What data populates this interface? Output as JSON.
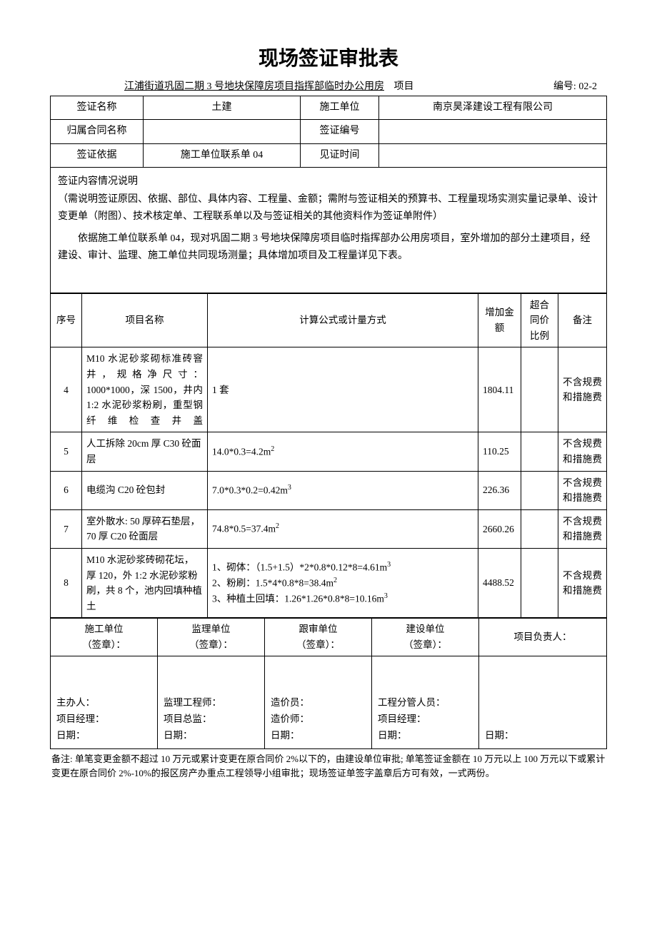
{
  "title": "现场签证审批表",
  "project_name": "江浦街道巩固二期 3 号地块保障房项目指挥部临时办公用房",
  "project_suffix": "项目",
  "doc_no_label": "编号:",
  "doc_no": "02-2",
  "header": {
    "r1c1_label": "签证名称",
    "r1c2": "土建",
    "r1c3_label": "施工单位",
    "r1c4": "南京昊泽建设工程有限公司",
    "r2c1_label": "归属合同名称",
    "r2c2": "",
    "r2c3_label": "签证编号",
    "r2c4": "",
    "r3c1_label": "签证依据",
    "r3c2": "施工单位联系单 04",
    "r3c3_label": "见证时间",
    "r3c4": ""
  },
  "description": {
    "line1": "签证内容情况说明",
    "line2": "（需说明签证原因、依据、部位、具体内容、工程量、金额；需附与签证相关的预算书、工程量现场实测实量记录单、设计变更单（附图）、技术核定单、工程联系单以及与签证相关的其他资料作为签证单附件）",
    "line3": "依据施工单位联系单 04，现对巩固二期 3 号地块保障房项目临时指挥部办公用房项目，室外增加的部分土建项目，经建设、审计、监理、施工单位共同现场测量；具体增加项目及工程量详见下表。"
  },
  "columns": {
    "seq": "序号",
    "name": "项目名称",
    "calc": "计算公式或计量方式",
    "amount": "增加金额",
    "ratio": "超合同价比例",
    "remark": "备注"
  },
  "items": [
    {
      "seq": "4",
      "name": "M10 水泥砂浆砌标准砖窨井，规格净尺寸：1000*1000，深 1500，井内 1:2 水泥砂浆粉刷，重型钢纤维检查井盖",
      "calc": "1 套",
      "amount": "1804.11",
      "ratio": "",
      "remark": "不含规费和措施费"
    },
    {
      "seq": "5",
      "name": "人工拆除 20cm 厚 C30 砼面层",
      "calc_html": "14.0*0.3=4.2m<sup>2</sup>",
      "amount": "110.25",
      "ratio": "",
      "remark": "不含规费和措施费"
    },
    {
      "seq": "6",
      "name": "电缆沟 C20 砼包封",
      "calc_html": "7.0*0.3*0.2=0.42m<sup>3</sup>",
      "amount": "226.36",
      "ratio": "",
      "remark": "不含规费和措施费"
    },
    {
      "seq": "7",
      "name": "室外散水: 50 厚碎石垫层，70 厚 C20 砼面层",
      "calc_html": "74.8*0.5=37.4m<sup>2</sup>",
      "amount": "2660.26",
      "ratio": "",
      "remark": "不含规费和措施费"
    },
    {
      "seq": "8",
      "name": "M10 水泥砂浆砖砌花坛，厚 120，外 1:2 水泥砂浆粉刷，共 8 个，池内回填种植土",
      "calc_html": "1、砌体：（1.5+1.5）*2*0.8*0.12*8=4.61m<sup>3</sup><br>2、粉刷：1.5*4*0.8*8=38.4m<sup>2</sup><br>3、种植土回填：1.26*1.26*0.8*8=10.16m<sup>3</sup>",
      "amount": "4488.52",
      "ratio": "",
      "remark": "不含规费和措施费"
    }
  ],
  "signatures": {
    "col1_title": "施工单位\n（签章）：",
    "col2_title": "监理单位\n（签章）：",
    "col3_title": "跟审单位\n（签章）：",
    "col4_title": "建设单位\n（签章）：",
    "col5_title": "项目负责人：",
    "col1_body": "主办人：\n项目经理：\n日期：",
    "col2_body": "监理工程师：\n项目总监：\n日期：",
    "col3_body": "造价员：\n造价师：\n日期：",
    "col4_body": "工程分管人员：\n项目经理：\n日期：",
    "col5_body": "日期："
  },
  "footnote": "备注: 单笔变更金额不超过 10 万元或累计变更在原合同价 2%以下的，由建设单位审批; 单笔签证金额在 10 万元以上 100 万元以下或累计变更在原合同价 2%-10%的报区房产办重点工程领导小组审批；现场签证单签字盖章后方可有效，一式两份。"
}
